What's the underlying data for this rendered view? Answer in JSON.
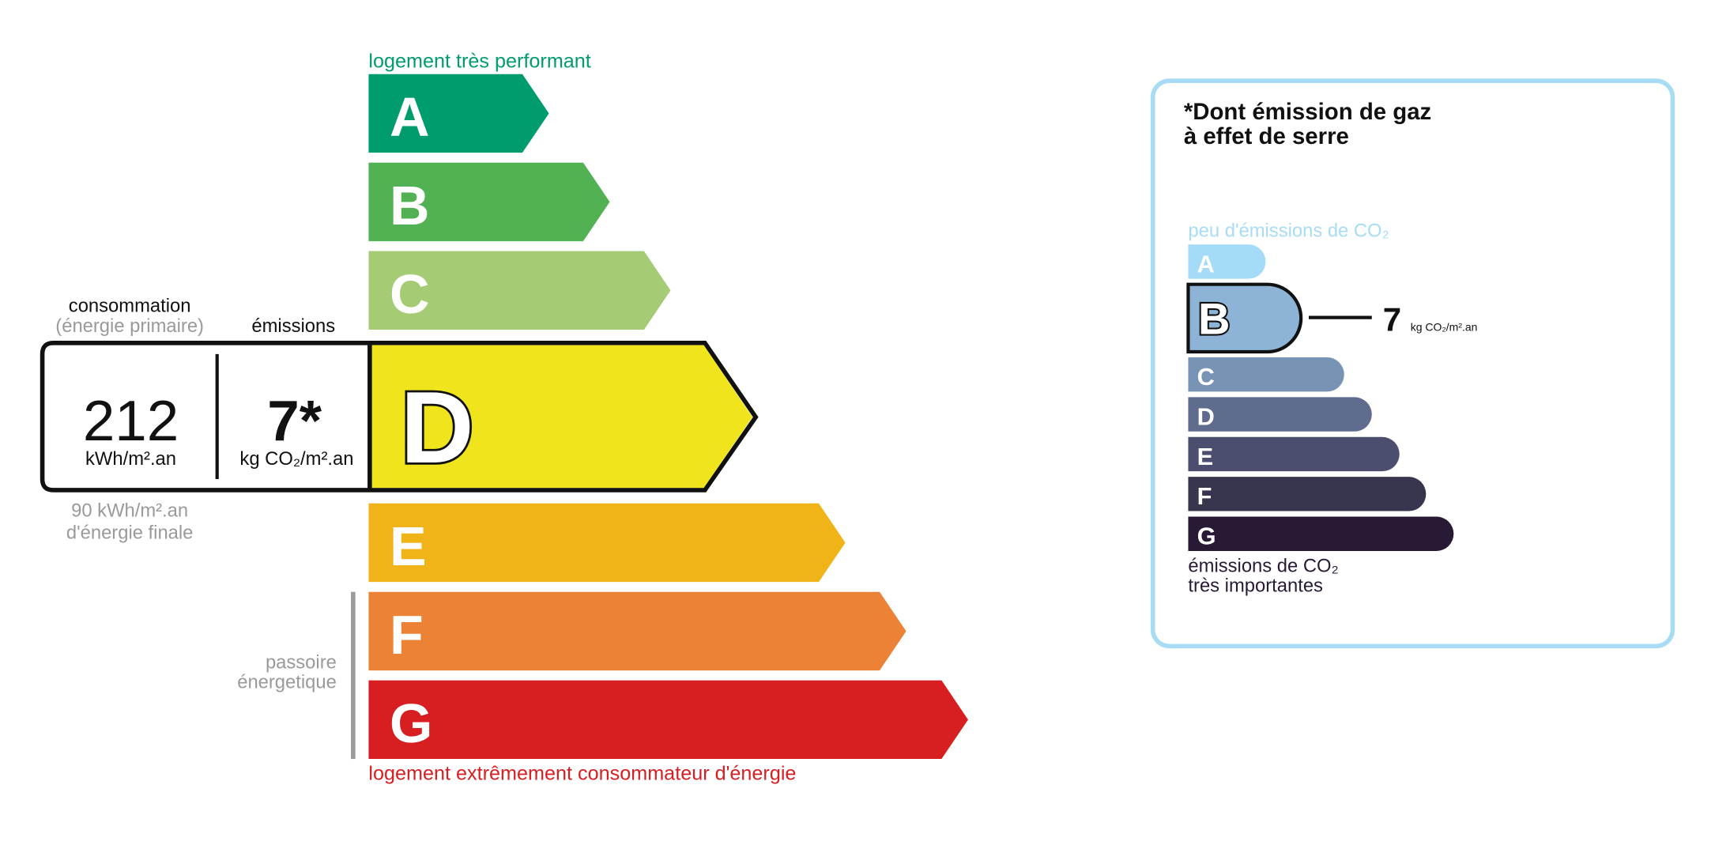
{
  "energy": {
    "top_label": "logement très performant",
    "bottom_label": "logement extrêmement consommateur d'énergie",
    "passoire_label": [
      "passoire",
      "énergetique"
    ],
    "current_class": "D",
    "classes": [
      {
        "letter": "A",
        "color": "#009c6d"
      },
      {
        "letter": "B",
        "color": "#52b153"
      },
      {
        "letter": "C",
        "color": "#a5cc74"
      },
      {
        "letter": "D",
        "color": "#f0e51c"
      },
      {
        "letter": "E",
        "color": "#f0b418"
      },
      {
        "letter": "F",
        "color": "#eb8235"
      },
      {
        "letter": "G",
        "color": "#d71e20"
      }
    ],
    "consumption": {
      "heading": "consommation",
      "subheading": "(énergie primaire)",
      "value": "212",
      "unit": "kWh/m².an",
      "final_value": "90 kWh/m².an",
      "final_label": "d'énergie finale"
    },
    "emissions": {
      "heading": "émissions",
      "value": "7*",
      "unit": "kg CO₂/m².an"
    }
  },
  "ghg": {
    "title_line1": "*Dont émission de gaz",
    "title_line2": "à effet de serre",
    "top_label": "peu d'émissions de CO₂",
    "bottom_label_line1": "émissions de CO₂",
    "bottom_label_line2": "très importantes",
    "current_class": "B",
    "value": "7",
    "unit": "kg CO₂/m².an",
    "border_color": "#a8dcf5",
    "classes": [
      {
        "letter": "A",
        "color": "#a4dbf8"
      },
      {
        "letter": "B",
        "color": "#8db4d6"
      },
      {
        "letter": "C",
        "color": "#7794b5"
      },
      {
        "letter": "D",
        "color": "#5f6c8e"
      },
      {
        "letter": "E",
        "color": "#4b4e6e"
      },
      {
        "letter": "F",
        "color": "#38354f"
      },
      {
        "letter": "G",
        "color": "#281a35"
      }
    ]
  }
}
